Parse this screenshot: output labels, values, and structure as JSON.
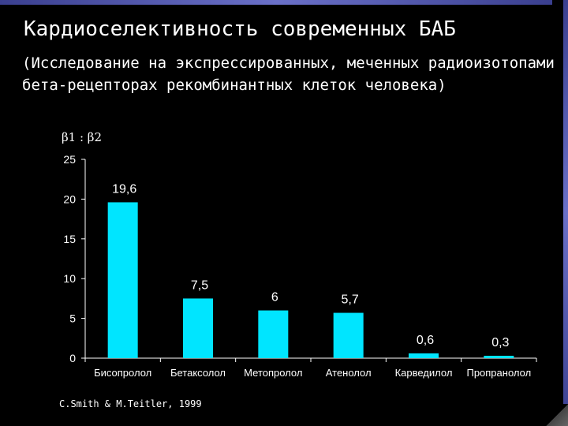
{
  "slide": {
    "title": "Кардиоселективность  современных  БАБ",
    "subtitle": "(Исследование на экспрессированных, меченных радиоизотопами бета-рецепторах рекомбинантных клеток человека)",
    "ratio_label": "β1 : β2",
    "credit": "C.Smith  & M.Teitler, 1999"
  },
  "colors": {
    "background": "#000000",
    "bar": "#00e5ff",
    "accent_frame": "#5a60b8",
    "text": "#ffffff"
  },
  "chart_data": {
    "type": "bar",
    "title": "",
    "ylabel": "β1 : β2",
    "xlabel": "",
    "categories": [
      "Бисопролол",
      "Бетаксолол",
      "Метопролол",
      "Атенолол",
      "Карведилол",
      "Пропранолол"
    ],
    "values": [
      19.6,
      7.5,
      6,
      5.7,
      0.6,
      0.3
    ],
    "value_labels": [
      "19,6",
      "7,5",
      "6",
      "5,7",
      "0,6",
      "0,3"
    ],
    "ylim": [
      0,
      25
    ],
    "yticks": [
      0,
      5,
      10,
      15,
      20,
      25
    ],
    "grid": false,
    "legend": "none"
  }
}
